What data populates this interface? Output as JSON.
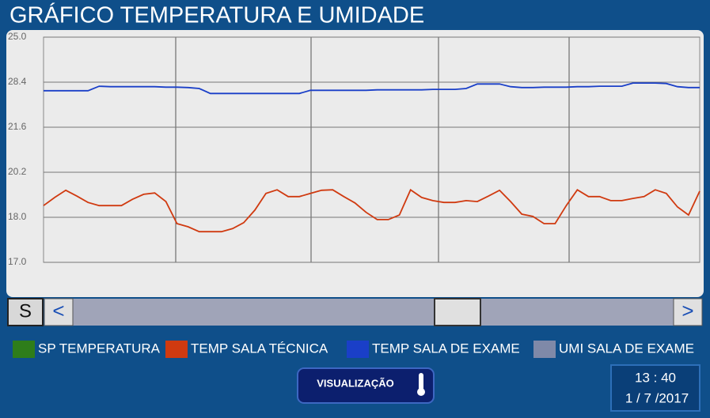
{
  "header": {
    "title": "GRÁFICO TEMPERATURA E UMIDADE"
  },
  "chart_data": {
    "type": "line",
    "ylim": [
      0,
      5
    ],
    "yticks": [
      {
        "value": 0,
        "label": "17.0"
      },
      {
        "value": 1,
        "label": "18.0"
      },
      {
        "value": 2,
        "label": "20.2"
      },
      {
        "value": 3,
        "label": "21.6"
      },
      {
        "value": 4,
        "label": "28.4"
      },
      {
        "value": 5,
        "label": "25.0"
      }
    ],
    "grid": true,
    "series": [
      {
        "name": "SP TEMPERATURA",
        "color": "#2e7d1a"
      },
      {
        "name": "TEMP SALA TÉCNICA",
        "color": "#d03a10",
        "values": [
          1.26,
          1.44,
          1.6,
          1.47,
          1.33,
          1.26,
          1.26,
          1.26,
          1.4,
          1.51,
          1.54,
          1.35,
          0.86,
          0.79,
          0.68,
          0.68,
          0.68,
          0.75,
          0.88,
          1.16,
          1.53,
          1.61,
          1.46,
          1.46,
          1.53,
          1.6,
          1.61,
          1.46,
          1.32,
          1.11,
          0.95,
          0.95,
          1.05,
          1.61,
          1.44,
          1.37,
          1.33,
          1.33,
          1.37,
          1.35,
          1.47,
          1.6,
          1.35,
          1.07,
          1.02,
          0.86,
          0.86,
          1.26,
          1.61,
          1.46,
          1.46,
          1.37,
          1.37,
          1.42,
          1.46,
          1.61,
          1.53,
          1.23,
          1.05,
          1.58
        ]
      },
      {
        "name": "TEMP SALA DE EXAME",
        "color": "#1a3fc8",
        "values": [
          3.81,
          3.81,
          3.81,
          3.81,
          3.81,
          3.91,
          3.9,
          3.9,
          3.9,
          3.9,
          3.9,
          3.89,
          3.89,
          3.88,
          3.86,
          3.75,
          3.75,
          3.75,
          3.75,
          3.75,
          3.75,
          3.75,
          3.75,
          3.75,
          3.82,
          3.82,
          3.82,
          3.82,
          3.82,
          3.82,
          3.83,
          3.83,
          3.83,
          3.83,
          3.83,
          3.84,
          3.84,
          3.84,
          3.86,
          3.96,
          3.96,
          3.96,
          3.9,
          3.88,
          3.88,
          3.89,
          3.89,
          3.89,
          3.9,
          3.9,
          3.91,
          3.91,
          3.91,
          3.98,
          3.98,
          3.98,
          3.97,
          3.9,
          3.88,
          3.88
        ]
      },
      {
        "name": "UMI SALA DE EXAME",
        "color": "#7f89a8"
      }
    ]
  },
  "scrollbar": {
    "button": "S",
    "left": "<",
    "right": ">"
  },
  "button": {
    "label": "VISUALIZAÇÃO"
  },
  "clock": {
    "time": "13 : 40",
    "date": "1 / 7 /2017"
  }
}
